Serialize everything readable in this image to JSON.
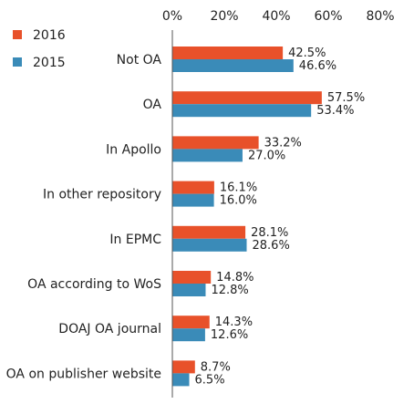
{
  "chart_data": {
    "type": "bar",
    "orientation": "horizontal",
    "title": "",
    "xlabel": "",
    "ylabel": "",
    "xlim": [
      0,
      80
    ],
    "x_ticks": [
      "0%",
      "20%",
      "40%",
      "60%",
      "80%"
    ],
    "x_tick_values": [
      0,
      20,
      40,
      60,
      80
    ],
    "axis_position": "top",
    "grid": false,
    "legend_position": "top-left",
    "categories": [
      "Not OA",
      "OA",
      "In Apollo",
      "In other repository",
      "In EPMC",
      "OA according to WoS",
      "DOAJ OA journal",
      "OA on publisher website"
    ],
    "series": [
      {
        "name": "2016",
        "color": "#E8512A",
        "values": [
          42.5,
          57.5,
          33.2,
          16.1,
          28.1,
          14.8,
          14.3,
          8.7
        ],
        "labels": [
          "42.5%",
          "57.5%",
          "33.2%",
          "16.1%",
          "28.1%",
          "14.8%",
          "14.3%",
          "8.7%"
        ]
      },
      {
        "name": "2015",
        "color": "#3A8BB8",
        "values": [
          46.6,
          53.4,
          27.0,
          16.0,
          28.6,
          12.8,
          12.6,
          6.5
        ],
        "labels": [
          "46.6%",
          "53.4%",
          "27.0%",
          "16.0%",
          "28.6%",
          "12.8%",
          "12.6%",
          "6.5%"
        ]
      }
    ]
  }
}
